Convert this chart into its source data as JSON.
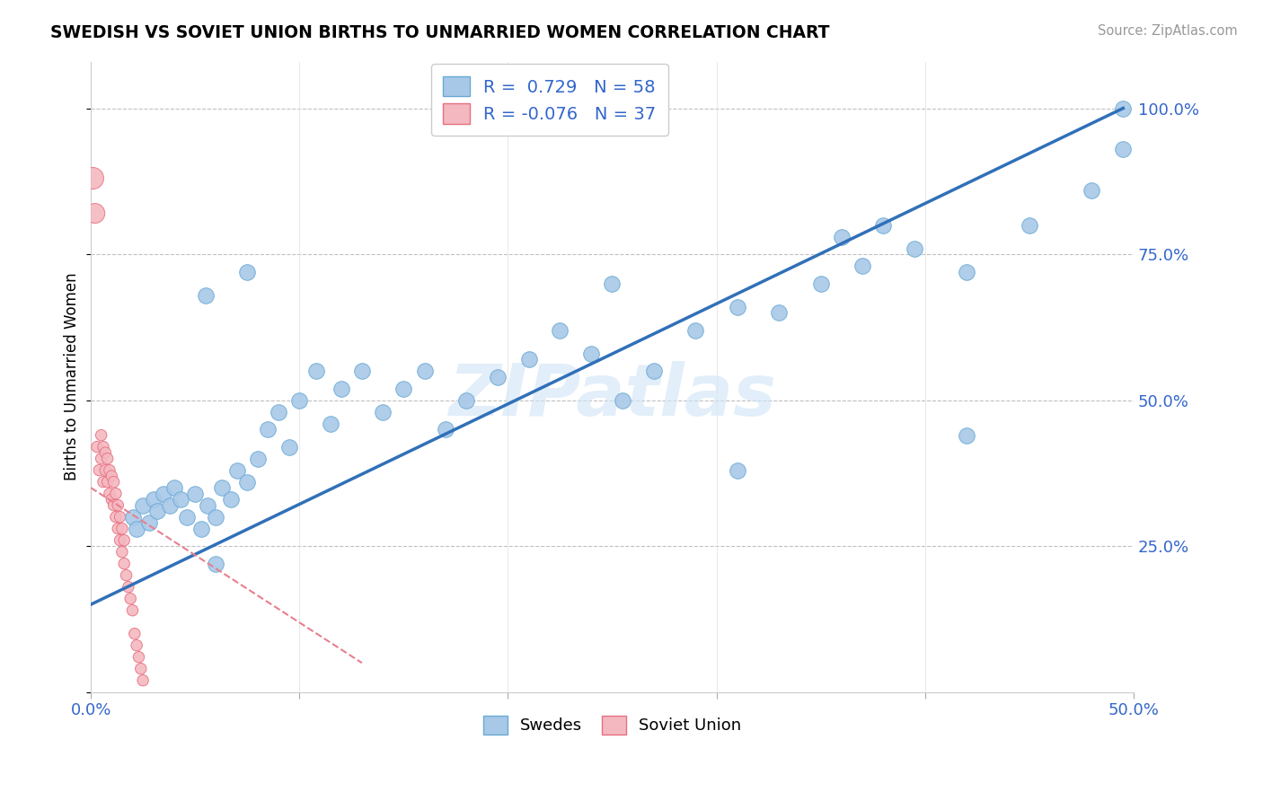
{
  "title": "SWEDISH VS SOVIET UNION BIRTHS TO UNMARRIED WOMEN CORRELATION CHART",
  "source": "Source: ZipAtlas.com",
  "ylabel": "Births to Unmarried Women",
  "R_swedes": 0.729,
  "N_swedes": 58,
  "R_soviet": -0.076,
  "N_soviet": 37,
  "xlim": [
    0.0,
    0.5
  ],
  "ylim": [
    0.0,
    1.08
  ],
  "swedes_color": "#a8c8e8",
  "swedes_edge": "#6aaad4",
  "soviet_color": "#f4b8c0",
  "soviet_edge": "#e87080",
  "trendline_blue": "#3070b8",
  "trendline_pink": "#e87f8f",
  "watermark": "ZIPatlas",
  "sw_trend_x0": 0.0,
  "sw_trend_y0": 0.15,
  "sw_trend_x1": 0.495,
  "sw_trend_y1": 1.0,
  "so_trend_x0": 0.0,
  "so_trend_y0": 0.35,
  "so_trend_x1": 0.13,
  "so_trend_y1": 0.05,
  "swedes_x": [
    0.02,
    0.022,
    0.025,
    0.028,
    0.03,
    0.032,
    0.035,
    0.038,
    0.04,
    0.043,
    0.046,
    0.05,
    0.053,
    0.056,
    0.06,
    0.063,
    0.067,
    0.07,
    0.075,
    0.08,
    0.085,
    0.09,
    0.095,
    0.1,
    0.108,
    0.115,
    0.12,
    0.13,
    0.14,
    0.15,
    0.16,
    0.17,
    0.18,
    0.195,
    0.21,
    0.225,
    0.24,
    0.255,
    0.27,
    0.29,
    0.31,
    0.33,
    0.35,
    0.37,
    0.395,
    0.42,
    0.45,
    0.48,
    0.495,
    0.055,
    0.075,
    0.25,
    0.31,
    0.36,
    0.38,
    0.42,
    0.495,
    0.06
  ],
  "swedes_y": [
    0.3,
    0.28,
    0.32,
    0.29,
    0.33,
    0.31,
    0.34,
    0.32,
    0.35,
    0.33,
    0.3,
    0.34,
    0.28,
    0.32,
    0.3,
    0.35,
    0.33,
    0.38,
    0.36,
    0.4,
    0.45,
    0.48,
    0.42,
    0.5,
    0.55,
    0.46,
    0.52,
    0.55,
    0.48,
    0.52,
    0.55,
    0.45,
    0.5,
    0.54,
    0.57,
    0.62,
    0.58,
    0.5,
    0.55,
    0.62,
    0.66,
    0.65,
    0.7,
    0.73,
    0.76,
    0.72,
    0.8,
    0.86,
    1.0,
    0.68,
    0.72,
    0.7,
    0.38,
    0.78,
    0.8,
    0.44,
    0.93,
    0.22
  ],
  "soviet_x": [
    0.001,
    0.002,
    0.003,
    0.004,
    0.005,
    0.005,
    0.006,
    0.006,
    0.007,
    0.007,
    0.008,
    0.008,
    0.009,
    0.009,
    0.01,
    0.01,
    0.011,
    0.011,
    0.012,
    0.012,
    0.013,
    0.013,
    0.014,
    0.014,
    0.015,
    0.015,
    0.016,
    0.016,
    0.017,
    0.018,
    0.019,
    0.02,
    0.021,
    0.022,
    0.023,
    0.024,
    0.025
  ],
  "soviet_y": [
    0.88,
    0.82,
    0.42,
    0.38,
    0.4,
    0.44,
    0.36,
    0.42,
    0.38,
    0.41,
    0.36,
    0.4,
    0.34,
    0.38,
    0.33,
    0.37,
    0.32,
    0.36,
    0.3,
    0.34,
    0.28,
    0.32,
    0.26,
    0.3,
    0.24,
    0.28,
    0.22,
    0.26,
    0.2,
    0.18,
    0.16,
    0.14,
    0.1,
    0.08,
    0.06,
    0.04,
    0.02
  ],
  "soviet_sizes": [
    300,
    250,
    80,
    80,
    80,
    80,
    80,
    80,
    80,
    80,
    80,
    80,
    80,
    80,
    80,
    80,
    80,
    80,
    80,
    80,
    80,
    80,
    80,
    80,
    80,
    80,
    80,
    80,
    80,
    80,
    80,
    80,
    80,
    80,
    80,
    80,
    80
  ]
}
